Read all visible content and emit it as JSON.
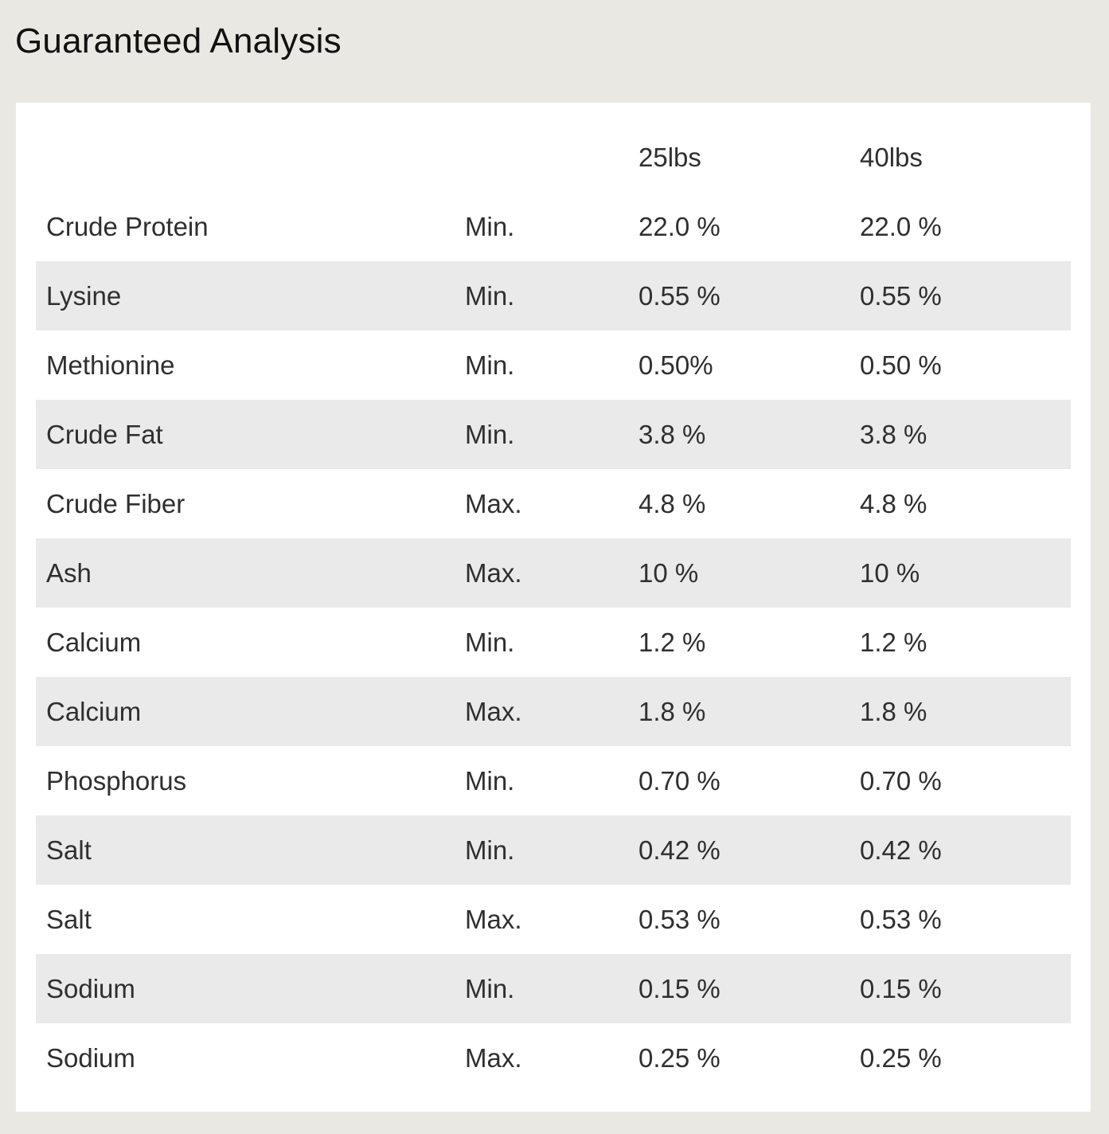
{
  "title": "Guaranteed Analysis",
  "table": {
    "headers": [
      "",
      "",
      "25lbs",
      "40lbs"
    ],
    "rows": [
      {
        "nutrient": "Crude Protein",
        "qualifier": "Min.",
        "v25": "22.0 %",
        "v40": "22.0 %"
      },
      {
        "nutrient": "Lysine",
        "qualifier": "Min.",
        "v25": "0.55 %",
        "v40": "0.55 %"
      },
      {
        "nutrient": "Methionine",
        "qualifier": "Min.",
        "v25": "0.50%",
        "v40": "0.50 %"
      },
      {
        "nutrient": "Crude Fat",
        "qualifier": "Min.",
        "v25": "3.8 %",
        "v40": "3.8 %"
      },
      {
        "nutrient": "Crude Fiber",
        "qualifier": "Max.",
        "v25": "4.8 %",
        "v40": "4.8 %"
      },
      {
        "nutrient": "Ash",
        "qualifier": "Max.",
        "v25": "10 %",
        "v40": "10 %"
      },
      {
        "nutrient": "Calcium",
        "qualifier": "Min.",
        "v25": "1.2 %",
        "v40": "1.2 %"
      },
      {
        "nutrient": "Calcium",
        "qualifier": "Max.",
        "v25": "1.8 %",
        "v40": "1.8 %"
      },
      {
        "nutrient": "Phosphorus",
        "qualifier": "Min.",
        "v25": "0.70 %",
        "v40": "0.70 %"
      },
      {
        "nutrient": "Salt",
        "qualifier": "Min.",
        "v25": "0.42 %",
        "v40": "0.42 %"
      },
      {
        "nutrient": "Salt",
        "qualifier": "Max.",
        "v25": "0.53 %",
        "v40": "0.53 %"
      },
      {
        "nutrient": "Sodium",
        "qualifier": "Min.",
        "v25": "0.15 %",
        "v40": "0.15 %"
      },
      {
        "nutrient": "Sodium",
        "qualifier": "Max.",
        "v25": "0.25 %",
        "v40": "0.25 %"
      }
    ]
  }
}
